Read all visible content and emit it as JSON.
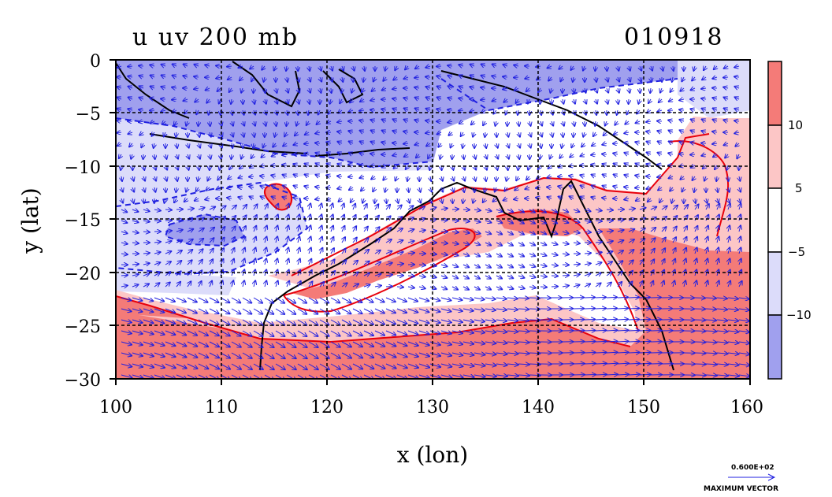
{
  "title_left": "u uv 200 mb",
  "title_right": "010918",
  "x_axis": {
    "label": "x (lon)",
    "ticks": [
      "100",
      "110",
      "120",
      "130",
      "140",
      "150",
      "160"
    ]
  },
  "y_axis": {
    "label": "y (lat)",
    "ticks": [
      "0",
      "−5",
      "−10",
      "−15",
      "−20",
      "−25",
      "−30"
    ]
  },
  "colorbar": {
    "labels": [
      "10",
      "5",
      "−5",
      "−10"
    ]
  },
  "vector_legend": {
    "magnitude": "0.600E+02",
    "caption": "MAXIMUM VECTOR"
  },
  "colors": {
    "strong_positive": "#f47b78",
    "weak_positive": "#fcc6c6",
    "neutral": "#ffffff",
    "weak_negative": "#dcdcfa",
    "strong_negative": "#a0a0ee",
    "vectors": "#2020e0",
    "contour_positive": "#e8000b"
  }
}
